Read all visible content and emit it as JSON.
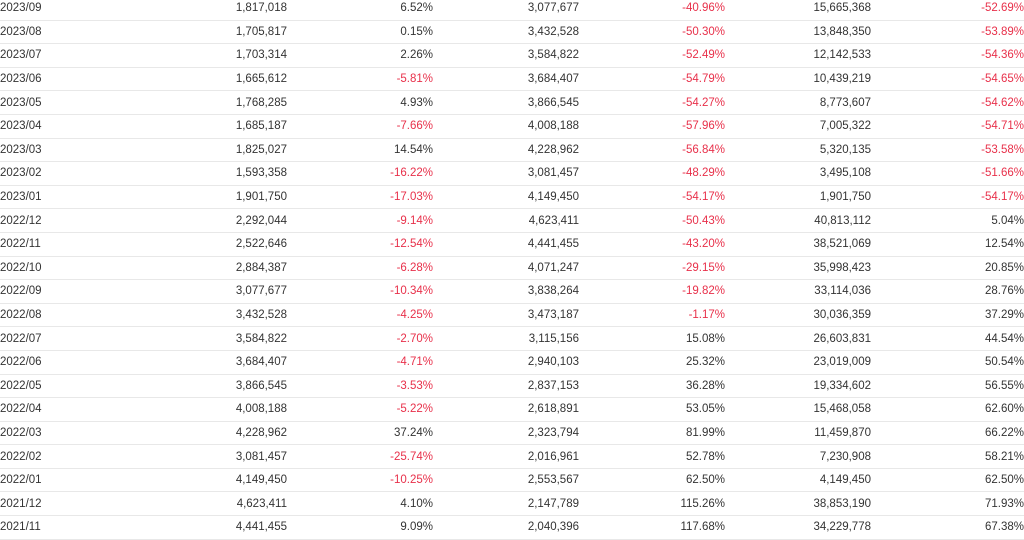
{
  "table": {
    "rows": [
      {
        "month": "2023/09",
        "value1": "1,817,018",
        "pct1": "6.52%",
        "value2": "3,077,677",
        "pct2": "-40.96%",
        "value3": "15,665,368",
        "pct3": "-52.69%"
      },
      {
        "month": "2023/08",
        "value1": "1,705,817",
        "pct1": "0.15%",
        "value2": "3,432,528",
        "pct2": "-50.30%",
        "value3": "13,848,350",
        "pct3": "-53.89%"
      },
      {
        "month": "2023/07",
        "value1": "1,703,314",
        "pct1": "2.26%",
        "value2": "3,584,822",
        "pct2": "-52.49%",
        "value3": "12,142,533",
        "pct3": "-54.36%"
      },
      {
        "month": "2023/06",
        "value1": "1,665,612",
        "pct1": "-5.81%",
        "value2": "3,684,407",
        "pct2": "-54.79%",
        "value3": "10,439,219",
        "pct3": "-54.65%"
      },
      {
        "month": "2023/05",
        "value1": "1,768,285",
        "pct1": "4.93%",
        "value2": "3,866,545",
        "pct2": "-54.27%",
        "value3": "8,773,607",
        "pct3": "-54.62%"
      },
      {
        "month": "2023/04",
        "value1": "1,685,187",
        "pct1": "-7.66%",
        "value2": "4,008,188",
        "pct2": "-57.96%",
        "value3": "7,005,322",
        "pct3": "-54.71%"
      },
      {
        "month": "2023/03",
        "value1": "1,825,027",
        "pct1": "14.54%",
        "value2": "4,228,962",
        "pct2": "-56.84%",
        "value3": "5,320,135",
        "pct3": "-53.58%"
      },
      {
        "month": "2023/02",
        "value1": "1,593,358",
        "pct1": "-16.22%",
        "value2": "3,081,457",
        "pct2": "-48.29%",
        "value3": "3,495,108",
        "pct3": "-51.66%"
      },
      {
        "month": "2023/01",
        "value1": "1,901,750",
        "pct1": "-17.03%",
        "value2": "4,149,450",
        "pct2": "-54.17%",
        "value3": "1,901,750",
        "pct3": "-54.17%"
      },
      {
        "month": "2022/12",
        "value1": "2,292,044",
        "pct1": "-9.14%",
        "value2": "4,623,411",
        "pct2": "-50.43%",
        "value3": "40,813,112",
        "pct3": "5.04%"
      },
      {
        "month": "2022/11",
        "value1": "2,522,646",
        "pct1": "-12.54%",
        "value2": "4,441,455",
        "pct2": "-43.20%",
        "value3": "38,521,069",
        "pct3": "12.54%"
      },
      {
        "month": "2022/10",
        "value1": "2,884,387",
        "pct1": "-6.28%",
        "value2": "4,071,247",
        "pct2": "-29.15%",
        "value3": "35,998,423",
        "pct3": "20.85%"
      },
      {
        "month": "2022/09",
        "value1": "3,077,677",
        "pct1": "-10.34%",
        "value2": "3,838,264",
        "pct2": "-19.82%",
        "value3": "33,114,036",
        "pct3": "28.76%"
      },
      {
        "month": "2022/08",
        "value1": "3,432,528",
        "pct1": "-4.25%",
        "value2": "3,473,187",
        "pct2": "-1.17%",
        "value3": "30,036,359",
        "pct3": "37.29%"
      },
      {
        "month": "2022/07",
        "value1": "3,584,822",
        "pct1": "-2.70%",
        "value2": "3,115,156",
        "pct2": "15.08%",
        "value3": "26,603,831",
        "pct3": "44.54%"
      },
      {
        "month": "2022/06",
        "value1": "3,684,407",
        "pct1": "-4.71%",
        "value2": "2,940,103",
        "pct2": "25.32%",
        "value3": "23,019,009",
        "pct3": "50.54%"
      },
      {
        "month": "2022/05",
        "value1": "3,866,545",
        "pct1": "-3.53%",
        "value2": "2,837,153",
        "pct2": "36.28%",
        "value3": "19,334,602",
        "pct3": "56.55%"
      },
      {
        "month": "2022/04",
        "value1": "4,008,188",
        "pct1": "-5.22%",
        "value2": "2,618,891",
        "pct2": "53.05%",
        "value3": "15,468,058",
        "pct3": "62.60%"
      },
      {
        "month": "2022/03",
        "value1": "4,228,962",
        "pct1": "37.24%",
        "value2": "2,323,794",
        "pct2": "81.99%",
        "value3": "11,459,870",
        "pct3": "66.22%"
      },
      {
        "month": "2022/02",
        "value1": "3,081,457",
        "pct1": "-25.74%",
        "value2": "2,016,961",
        "pct2": "52.78%",
        "value3": "7,230,908",
        "pct3": "58.21%"
      },
      {
        "month": "2022/01",
        "value1": "4,149,450",
        "pct1": "-10.25%",
        "value2": "2,553,567",
        "pct2": "62.50%",
        "value3": "4,149,450",
        "pct3": "62.50%"
      },
      {
        "month": "2021/12",
        "value1": "4,623,411",
        "pct1": "4.10%",
        "value2": "2,147,789",
        "pct2": "115.26%",
        "value3": "38,853,190",
        "pct3": "71.93%"
      },
      {
        "month": "2021/11",
        "value1": "4,441,455",
        "pct1": "9.09%",
        "value2": "2,040,396",
        "pct2": "117.68%",
        "value3": "34,229,778",
        "pct3": "67.38%"
      }
    ]
  },
  "colors": {
    "negative": "#e8304a",
    "positive": "#333333",
    "row_border": "#e8e8e8"
  }
}
